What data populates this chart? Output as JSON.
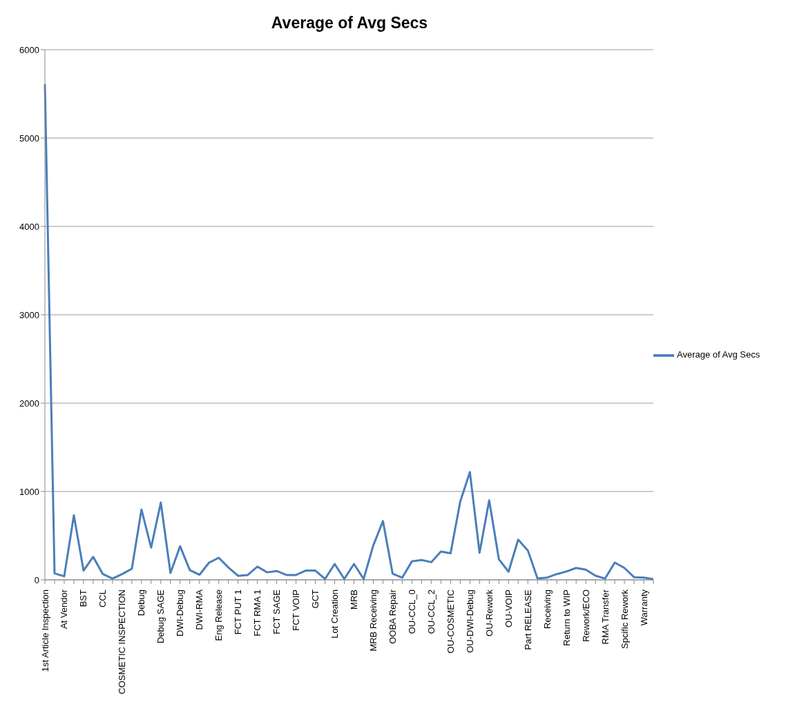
{
  "chart_data": {
    "type": "line",
    "title": "Average of Avg Secs",
    "categories": [
      "1st Article Inspection",
      null,
      "At Vendor",
      null,
      "BST",
      null,
      "CCL",
      null,
      "COSMETIC INSPECTION",
      null,
      "Debug",
      null,
      "Debug SAGE",
      null,
      "DWI-Debug",
      null,
      "DWI-RMA",
      null,
      "Eng Release",
      null,
      "FCT PUT 1",
      null,
      "FCT RMA 1",
      null,
      "FCT SAGE",
      null,
      "FCT VOIP",
      null,
      "GCT",
      null,
      "Lot Creation",
      null,
      "MRB",
      null,
      "MRB Receiving",
      null,
      "OOBA Repair",
      null,
      "OU-CCL_0",
      null,
      "OU-CCL_2",
      null,
      "OU-COSMETIC",
      null,
      "OU-DWI-Debug",
      null,
      "OU-Rework",
      null,
      "OU-VOIP",
      null,
      "Part RELEASE",
      null,
      "Receiving",
      null,
      "Return to WIP",
      null,
      "Rework/ECO",
      null,
      "RMA Transfer",
      null,
      "Spcific Rework",
      null,
      "Warranty",
      null
    ],
    "series": [
      {
        "name": "Average of Avg Secs",
        "color": "#4a7ebb",
        "values": [
          5610,
          73,
          40,
          730,
          105,
          260,
          65,
          15,
          65,
          125,
          795,
          365,
          875,
          78,
          380,
          110,
          57,
          195,
          250,
          140,
          45,
          55,
          150,
          85,
          100,
          55,
          55,
          105,
          105,
          10,
          180,
          10,
          180,
          10,
          390,
          665,
          70,
          25,
          210,
          225,
          200,
          320,
          300,
          885,
          1220,
          307,
          900,
          234,
          92,
          455,
          333,
          15,
          26,
          65,
          95,
          135,
          115,
          47,
          15,
          195,
          135,
          30,
          26,
          8
        ]
      }
    ],
    "ylim": [
      0,
      6000
    ],
    "yticks": [
      0,
      1000,
      2000,
      3000,
      4000,
      5000,
      6000
    ],
    "grid": "y",
    "legend": "right",
    "marker": "none",
    "line_style": "solid"
  }
}
